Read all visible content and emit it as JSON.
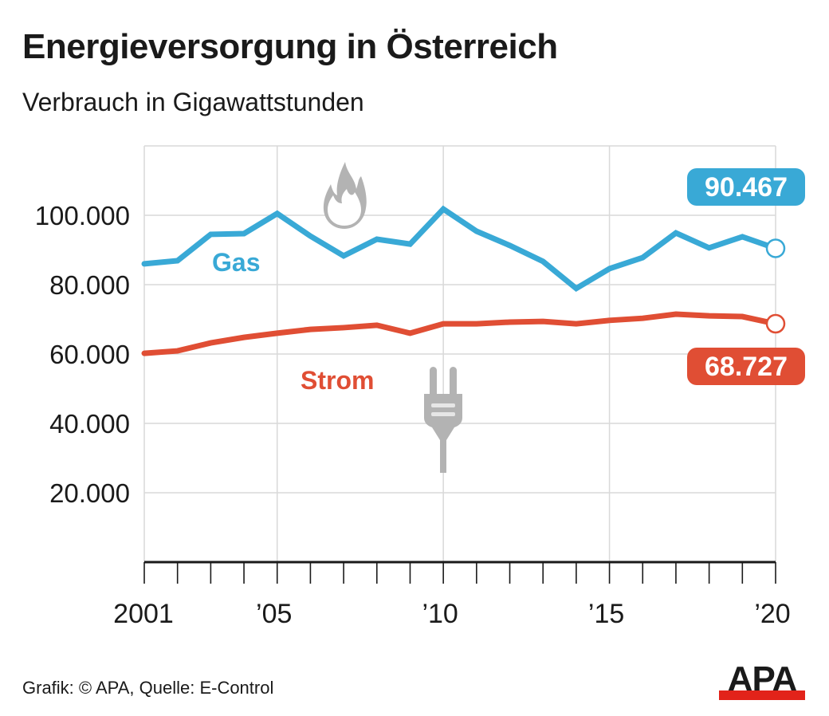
{
  "header": {
    "title": "Energieversorgung in Österreich",
    "subtitle": "Verbrauch in Gigawattstunden"
  },
  "footer": {
    "credit": "Grafik: © APA, Quelle: E-Control",
    "logo_text": "APA",
    "logo_colors": {
      "text": "#1a1a1a",
      "bar": "#e2231a"
    }
  },
  "icons": {
    "gas": "flame-icon",
    "strom": "power-plug-icon",
    "color": "#b3b3b3"
  },
  "chart_data": {
    "type": "line",
    "title": "Energieversorgung in Österreich",
    "subtitle": "Verbrauch in Gigawattstunden",
    "xlabel": "",
    "ylabel": "",
    "x": [
      2001,
      2002,
      2003,
      2004,
      2005,
      2006,
      2007,
      2008,
      2009,
      2010,
      2011,
      2012,
      2013,
      2014,
      2015,
      2016,
      2017,
      2018,
      2019,
      2020
    ],
    "xlim": [
      2001,
      2020
    ],
    "ylim": [
      0,
      120000
    ],
    "x_ticks": [
      {
        "value": 2001,
        "label": "2001"
      },
      {
        "value": 2005,
        "label": "’05"
      },
      {
        "value": 2010,
        "label": "’10"
      },
      {
        "value": 2015,
        "label": "’15"
      },
      {
        "value": 2020,
        "label": "’20"
      }
    ],
    "y_ticks": [
      {
        "value": 20000,
        "label": "20.000"
      },
      {
        "value": 40000,
        "label": "40.000"
      },
      {
        "value": 60000,
        "label": "60.000"
      },
      {
        "value": 80000,
        "label": "80.000"
      },
      {
        "value": 100000,
        "label": "100.000"
      }
    ],
    "grid": true,
    "legend": "inline",
    "series": [
      {
        "name": "Gas",
        "color": "#39a9d6",
        "values": [
          86000,
          86900,
          94500,
          94700,
          100500,
          94000,
          88300,
          93100,
          91700,
          101800,
          95400,
          91300,
          86700,
          78900,
          84600,
          87800,
          94900,
          90600,
          93800,
          90467
        ],
        "end_label": "90.467"
      },
      {
        "name": "Strom",
        "color": "#e04e34",
        "values": [
          60200,
          60900,
          63200,
          64800,
          66000,
          67100,
          67600,
          68300,
          66000,
          68700,
          68700,
          69200,
          69400,
          68700,
          69700,
          70300,
          71500,
          71000,
          70800,
          68727
        ],
        "end_label": "68.727"
      }
    ]
  }
}
